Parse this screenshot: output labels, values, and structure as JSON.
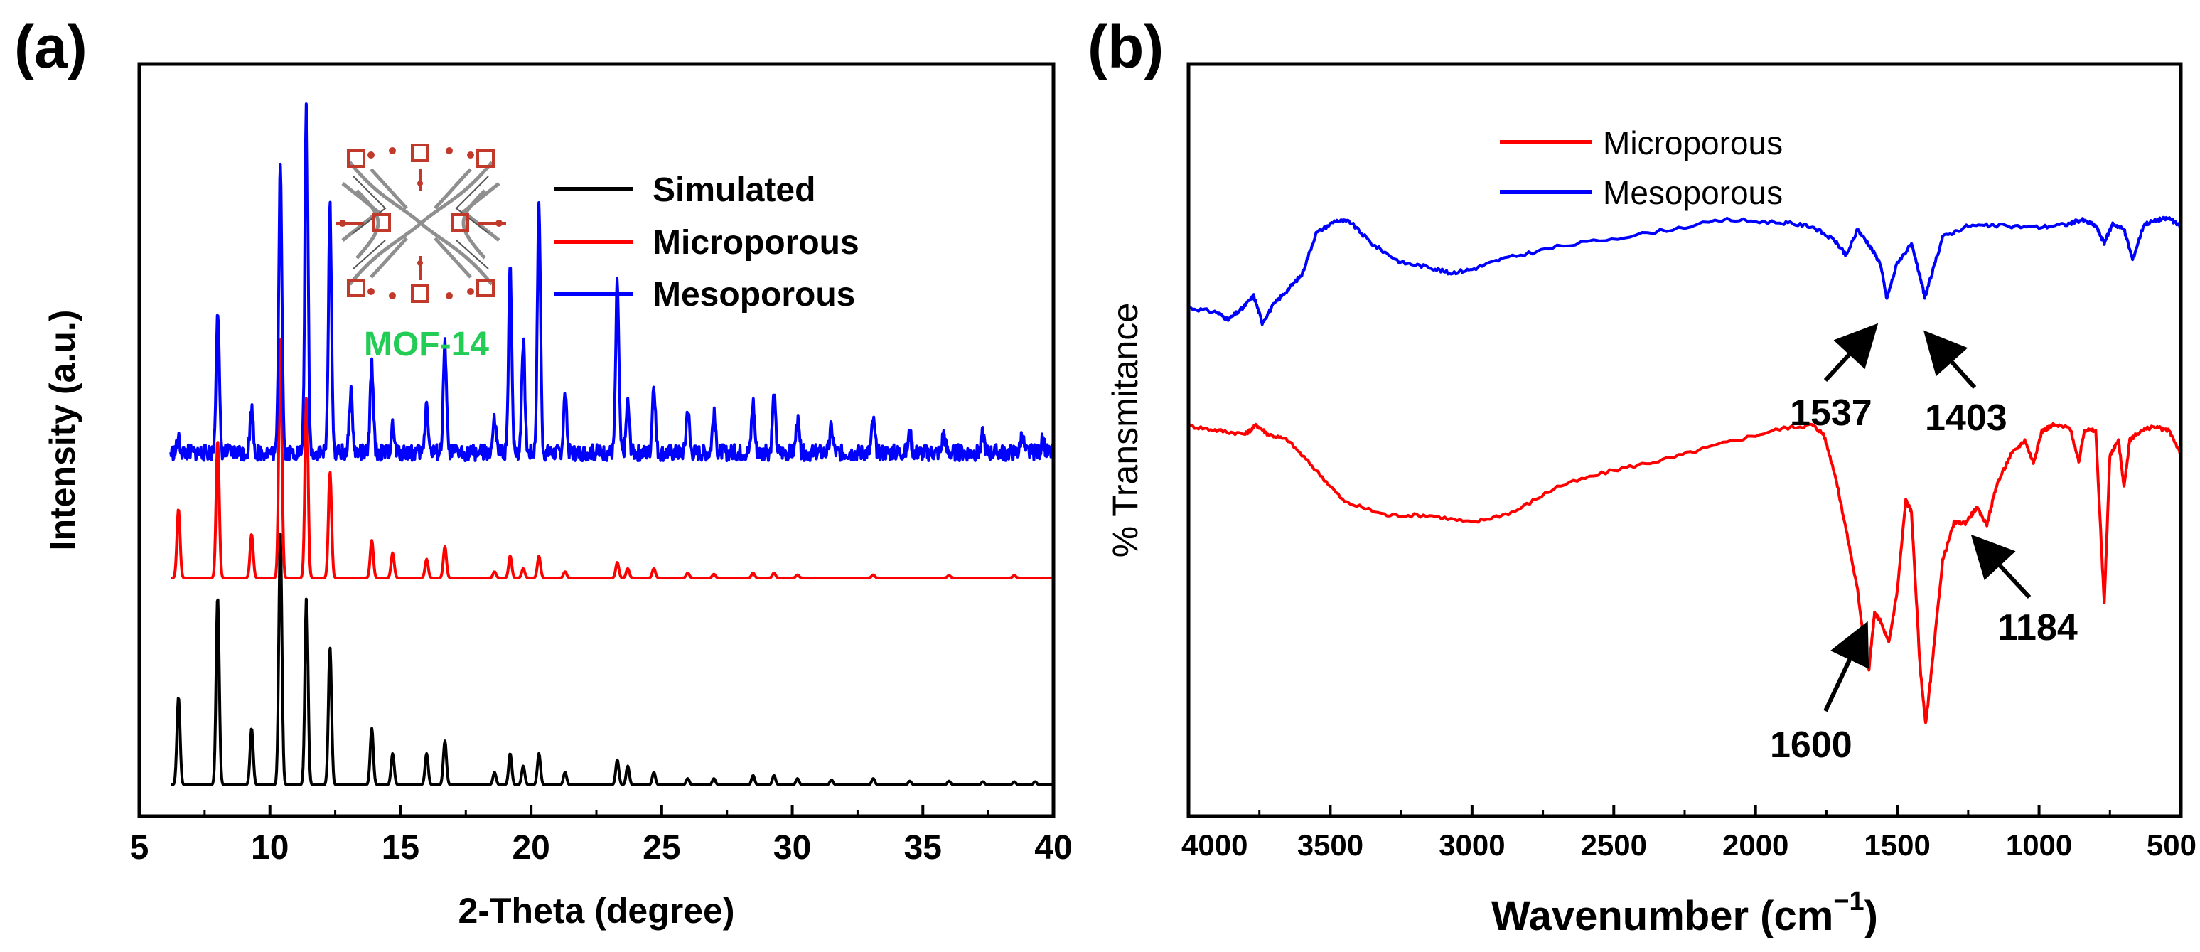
{
  "chart_data": [
    {
      "type": "line",
      "panel_label": "(a)",
      "title": "",
      "xlabel": "2-Theta (degree)",
      "ylabel": "Intensity (a.u.)",
      "xlim": [
        5,
        40
      ],
      "xticks": [
        "5",
        "10",
        "15",
        "20",
        "25",
        "30",
        "35",
        "40"
      ],
      "ylim": [
        0,
        1.2
      ],
      "yticks_visible": false,
      "legend": {
        "location": "top-right",
        "entries": [
          "Simulated",
          "Microporous",
          "Mesoporous"
        ]
      },
      "inset": {
        "caption": "MOF-14",
        "caption_color": "#2ecc52",
        "description": "crystal structure"
      },
      "colors": {
        "Simulated": "#000000",
        "Microporous": "#ff0000",
        "Mesoporous": "#0000ff",
        "caption": "#22cc55"
      },
      "series": [
        {
          "name": "Simulated",
          "baseline": 0.05,
          "peaks": [
            [
              6.5,
              0.14
            ],
            [
              8.0,
              0.3
            ],
            [
              9.3,
              0.09
            ],
            [
              10.4,
              0.4
            ],
            [
              11.4,
              0.3
            ],
            [
              12.3,
              0.22
            ],
            [
              13.9,
              0.09
            ],
            [
              14.7,
              0.05
            ],
            [
              16.0,
              0.05
            ],
            [
              16.7,
              0.07
            ],
            [
              18.6,
              0.02
            ],
            [
              19.2,
              0.05
            ],
            [
              19.7,
              0.03
            ],
            [
              20.3,
              0.05
            ],
            [
              21.3,
              0.02
            ],
            [
              23.3,
              0.04
            ],
            [
              23.7,
              0.03
            ],
            [
              24.7,
              0.02
            ],
            [
              26.0,
              0.01
            ],
            [
              27.0,
              0.01
            ],
            [
              28.5,
              0.015
            ],
            [
              29.3,
              0.015
            ],
            [
              30.2,
              0.01
            ],
            [
              31.5,
              0.008
            ],
            [
              33.1,
              0.01
            ],
            [
              34.5,
              0.006
            ],
            [
              36.0,
              0.006
            ],
            [
              37.3,
              0.005
            ],
            [
              38.5,
              0.005
            ],
            [
              39.3,
              0.005
            ]
          ]
        },
        {
          "name": "Microporous",
          "baseline": 0.38,
          "peaks": [
            [
              6.5,
              0.11
            ],
            [
              8.0,
              0.22
            ],
            [
              9.3,
              0.07
            ],
            [
              10.4,
              0.38
            ],
            [
              11.4,
              0.29
            ],
            [
              12.3,
              0.17
            ],
            [
              13.9,
              0.06
            ],
            [
              14.7,
              0.04
            ],
            [
              16.0,
              0.03
            ],
            [
              16.7,
              0.05
            ],
            [
              18.6,
              0.01
            ],
            [
              19.2,
              0.035
            ],
            [
              19.7,
              0.015
            ],
            [
              20.3,
              0.035
            ],
            [
              21.3,
              0.01
            ],
            [
              23.3,
              0.025
            ],
            [
              23.7,
              0.015
            ],
            [
              24.7,
              0.015
            ],
            [
              26.0,
              0.008
            ],
            [
              27.0,
              0.006
            ],
            [
              28.5,
              0.008
            ],
            [
              29.3,
              0.008
            ],
            [
              30.2,
              0.005
            ],
            [
              33.1,
              0.005
            ],
            [
              36.0,
              0.004
            ],
            [
              38.5,
              0.004
            ]
          ]
        },
        {
          "name": "Mesoporous",
          "baseline": 0.58,
          "noise": 0.013,
          "peaks": [
            [
              6.5,
              0.02
            ],
            [
              8.0,
              0.23
            ],
            [
              9.3,
              0.07
            ],
            [
              10.4,
              0.47
            ],
            [
              11.4,
              0.56
            ],
            [
              12.3,
              0.39
            ],
            [
              13.1,
              0.1
            ],
            [
              13.9,
              0.14
            ],
            [
              14.7,
              0.04
            ],
            [
              16.0,
              0.08
            ],
            [
              16.7,
              0.17
            ],
            [
              18.6,
              0.05
            ],
            [
              19.2,
              0.3
            ],
            [
              19.7,
              0.18
            ],
            [
              20.3,
              0.4
            ],
            [
              21.3,
              0.09
            ],
            [
              23.3,
              0.27
            ],
            [
              23.7,
              0.08
            ],
            [
              24.7,
              0.11
            ],
            [
              26.0,
              0.07
            ],
            [
              27.0,
              0.06
            ],
            [
              28.5,
              0.08
            ],
            [
              29.3,
              0.09
            ],
            [
              30.2,
              0.05
            ],
            [
              31.5,
              0.04
            ],
            [
              33.1,
              0.05
            ],
            [
              34.5,
              0.03
            ],
            [
              35.8,
              0.03
            ],
            [
              37.3,
              0.03
            ],
            [
              38.8,
              0.03
            ],
            [
              39.6,
              0.02
            ]
          ]
        }
      ]
    },
    {
      "type": "line",
      "panel_label": "(b)",
      "title": "",
      "xlabel": "Wavenumber (cm−1)",
      "xlabel_main": "Wavenumber (cm",
      "xlabel_sup": "−1",
      "xlabel_close": ")",
      "ylabel": "% Transmitance",
      "xlim": [
        4000,
        500
      ],
      "xticks": [
        "4000",
        "3500",
        "3000",
        "2500",
        "2000",
        "1500",
        "1000",
        "500"
      ],
      "ylim": [
        0,
        1
      ],
      "yticks_visible": false,
      "legend": {
        "location": "top-center",
        "entries": [
          "Microporous",
          "Mesoporous"
        ]
      },
      "colors": {
        "Microporous": "#ff0000",
        "Mesoporous": "#0000ff"
      },
      "series": [
        {
          "name": "Mesoporous",
          "points": [
            [
              4000,
              0.676
            ],
            [
              3900,
              0.67
            ],
            [
              3860,
              0.66
            ],
            [
              3810,
              0.675
            ],
            [
              3770,
              0.692
            ],
            [
              3740,
              0.656
            ],
            [
              3700,
              0.68
            ],
            [
              3650,
              0.7
            ],
            [
              3600,
              0.72
            ],
            [
              3550,
              0.775
            ],
            [
              3480,
              0.792
            ],
            [
              3430,
              0.79
            ],
            [
              3350,
              0.76
            ],
            [
              3250,
              0.736
            ],
            [
              3150,
              0.73
            ],
            [
              3080,
              0.722
            ],
            [
              3000,
              0.727
            ],
            [
              2900,
              0.74
            ],
            [
              2700,
              0.757
            ],
            [
              2400,
              0.774
            ],
            [
              2100,
              0.793
            ],
            [
              1900,
              0.789
            ],
            [
              1800,
              0.784
            ],
            [
              1720,
              0.765
            ],
            [
              1680,
              0.745
            ],
            [
              1640,
              0.78
            ],
            [
              1600,
              0.76
            ],
            [
              1560,
              0.735
            ],
            [
              1537,
              0.688
            ],
            [
              1500,
              0.736
            ],
            [
              1450,
              0.76
            ],
            [
              1420,
              0.718
            ],
            [
              1403,
              0.69
            ],
            [
              1380,
              0.718
            ],
            [
              1340,
              0.77
            ],
            [
              1250,
              0.785
            ],
            [
              1150,
              0.785
            ],
            [
              1000,
              0.783
            ],
            [
              900,
              0.787
            ],
            [
              850,
              0.793
            ],
            [
              800,
              0.785
            ],
            [
              770,
              0.762
            ],
            [
              740,
              0.788
            ],
            [
              700,
              0.78
            ],
            [
              670,
              0.74
            ],
            [
              630,
              0.787
            ],
            [
              580,
              0.793
            ],
            [
              540,
              0.795
            ],
            [
              500,
              0.783
            ]
          ]
        },
        {
          "name": "Microporous",
          "points": [
            [
              4000,
              0.519
            ],
            [
              3900,
              0.513
            ],
            [
              3800,
              0.508
            ],
            [
              3760,
              0.52
            ],
            [
              3720,
              0.508
            ],
            [
              3650,
              0.5
            ],
            [
              3550,
              0.46
            ],
            [
              3450,
              0.418
            ],
            [
              3300,
              0.4
            ],
            [
              3150,
              0.4
            ],
            [
              3000,
              0.39
            ],
            [
              2850,
              0.405
            ],
            [
              2700,
              0.438
            ],
            [
              2500,
              0.46
            ],
            [
              2300,
              0.476
            ],
            [
              2100,
              0.497
            ],
            [
              1900,
              0.516
            ],
            [
              1800,
              0.52
            ],
            [
              1760,
              0.508
            ],
            [
              1720,
              0.455
            ],
            [
              1680,
              0.38
            ],
            [
              1640,
              0.3
            ],
            [
              1610,
              0.21
            ],
            [
              1600,
              0.195
            ],
            [
              1580,
              0.27
            ],
            [
              1560,
              0.26
            ],
            [
              1530,
              0.23
            ],
            [
              1500,
              0.3
            ],
            [
              1470,
              0.42
            ],
            [
              1450,
              0.405
            ],
            [
              1420,
              0.2
            ],
            [
              1400,
              0.122
            ],
            [
              1380,
              0.19
            ],
            [
              1340,
              0.34
            ],
            [
              1300,
              0.39
            ],
            [
              1260,
              0.39
            ],
            [
              1220,
              0.41
            ],
            [
              1184,
              0.388
            ],
            [
              1150,
              0.44
            ],
            [
              1100,
              0.48
            ],
            [
              1050,
              0.5
            ],
            [
              1020,
              0.47
            ],
            [
              990,
              0.512
            ],
            [
              950,
              0.52
            ],
            [
              890,
              0.516
            ],
            [
              860,
              0.47
            ],
            [
              840,
              0.514
            ],
            [
              800,
              0.512
            ],
            [
              770,
              0.282
            ],
            [
              750,
              0.48
            ],
            [
              720,
              0.5
            ],
            [
              700,
              0.438
            ],
            [
              680,
              0.5
            ],
            [
              650,
              0.51
            ],
            [
              600,
              0.518
            ],
            [
              540,
              0.512
            ],
            [
              500,
              0.482
            ]
          ]
        }
      ],
      "annotations": [
        {
          "text": "1537",
          "x": 1537,
          "series": "Mesoporous"
        },
        {
          "text": "1403",
          "x": 1403,
          "series": "Mesoporous"
        },
        {
          "text": "1600",
          "x": 1600,
          "series": "Microporous"
        },
        {
          "text": "1184",
          "x": 1184,
          "series": "Microporous"
        }
      ]
    }
  ]
}
